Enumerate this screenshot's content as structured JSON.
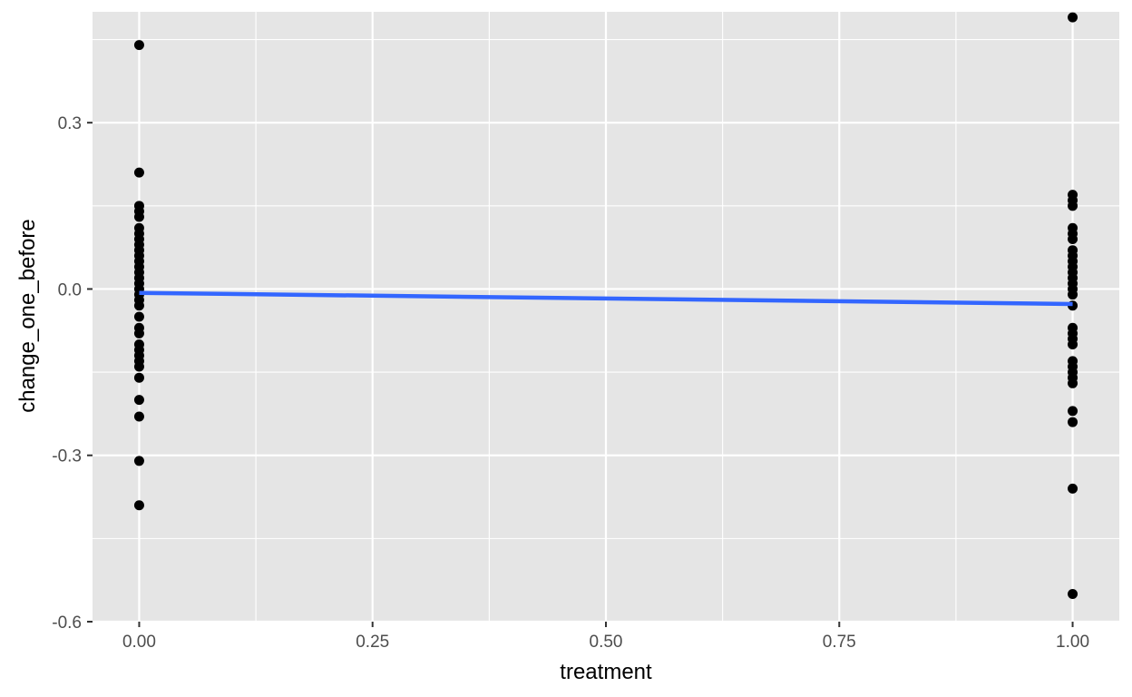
{
  "chart_data": {
    "type": "scatter",
    "title": "",
    "xlabel": "treatment",
    "ylabel": "change_one_before",
    "xlim": [
      -0.05,
      1.05
    ],
    "ylim": [
      -0.6,
      0.5
    ],
    "x_ticks": [
      0.0,
      0.25,
      0.5,
      0.75,
      1.0
    ],
    "x_tick_labels": [
      "0.00",
      "0.25",
      "0.50",
      "0.75",
      "1.00"
    ],
    "y_ticks": [
      -0.6,
      -0.3,
      0.0,
      0.3
    ],
    "y_tick_labels": [
      "-0.6",
      "-0.3",
      "0.0",
      "0.3"
    ],
    "grid": true,
    "panel_background": "#e5e5e5",
    "grid_color": "#ffffff",
    "point_color": "#000000",
    "fit_line_color": "#3366ff",
    "series": [
      {
        "x": 0,
        "values": [
          0.44,
          0.21,
          0.15,
          0.14,
          0.13,
          0.11,
          0.1,
          0.09,
          0.08,
          0.07,
          0.06,
          0.05,
          0.04,
          0.03,
          0.02,
          0.01,
          0.0,
          -0.01,
          -0.02,
          -0.03,
          -0.05,
          -0.07,
          -0.08,
          -0.1,
          -0.11,
          -0.12,
          -0.13,
          -0.14,
          -0.16,
          -0.2,
          -0.23,
          -0.31,
          -0.39
        ]
      },
      {
        "x": 1,
        "values": [
          0.49,
          0.17,
          0.16,
          0.15,
          0.11,
          0.1,
          0.09,
          0.07,
          0.06,
          0.05,
          0.04,
          0.03,
          0.02,
          0.01,
          0.0,
          -0.01,
          -0.03,
          -0.07,
          -0.08,
          -0.09,
          -0.1,
          -0.13,
          -0.14,
          -0.15,
          -0.16,
          -0.17,
          -0.22,
          -0.24,
          -0.36,
          -0.55
        ]
      }
    ],
    "fit_line": {
      "x": [
        0,
        1
      ],
      "y": [
        -0.007,
        -0.027
      ]
    }
  }
}
